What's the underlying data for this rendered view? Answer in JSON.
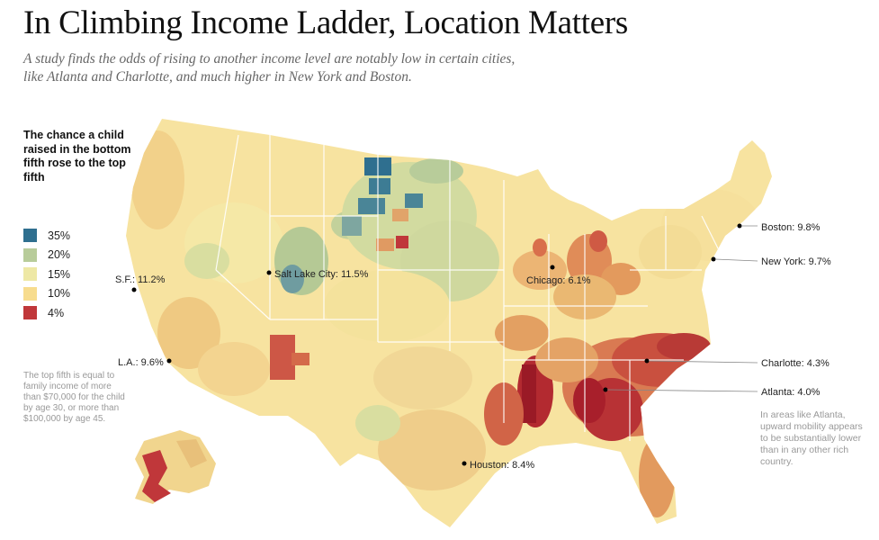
{
  "title": "In Climbing Income Ladder, Location Matters",
  "subtitle": "A study finds the odds of rising to another income level are notably low in certain cities, like Atlanta and Charlotte, and much higher in New York and Boston.",
  "legend": {
    "title": "The chance a child raised in the bottom fifth rose to the top fifth",
    "items": [
      {
        "label": "35%",
        "color": "#2f6f8f"
      },
      {
        "label": "20%",
        "color": "#b8cc9a"
      },
      {
        "label": "15%",
        "color": "#eee8a5"
      },
      {
        "label": "10%",
        "color": "#f7dc8e"
      },
      {
        "label": "4%",
        "color": "#c0373a"
      }
    ]
  },
  "footnote": "The top fifth is equal to family income of more than $70,000 for the child by age 30, or more than $100,000 by age 45.",
  "note": "In areas like Atlanta, upward mobility appears to be substantially lower than in any other rich country.",
  "cities": [
    {
      "label": "Boston: 9.8%"
    },
    {
      "label": "New York: 9.7%"
    },
    {
      "label": "Salt Lake City: 11.5%"
    },
    {
      "label": "S.F.: 11.2%"
    },
    {
      "label": "Chicago: 6.1%"
    },
    {
      "label": "L.A.: 9.6%"
    },
    {
      "label": "Charlotte: 4.3%"
    },
    {
      "label": "Atlanta: 4.0%"
    },
    {
      "label": "Houston: 8.4%"
    }
  ]
}
